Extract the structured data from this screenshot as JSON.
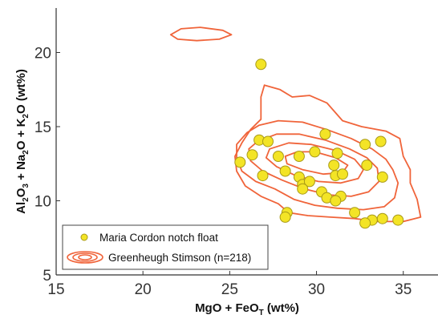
{
  "chart_data": {
    "type": "scatter",
    "title": "",
    "xlabel": "MgO + FeO<sub>T</sub> (wt%)",
    "ylabel": "Al<sub>2</sub>O<sub>3</sub> + Na<sub>2</sub>O + K<sub>2</sub>O (wt%)",
    "xlabel_parts": [
      "MgO + FeO",
      "T",
      " (wt%)"
    ],
    "ylabel_parts": [
      "Al",
      "2",
      "O",
      "3",
      " + Na",
      "2",
      "O + K",
      "2",
      "O (wt%)"
    ],
    "xlim": [
      15,
      37
    ],
    "ylim": [
      5,
      23
    ],
    "xticks": [
      15,
      20,
      25,
      30,
      35
    ],
    "yticks": [
      5,
      10,
      15,
      20
    ],
    "grid": false,
    "legend": {
      "placement": "bottom-left",
      "entries": [
        {
          "label": "Maria Cordon notch float",
          "marker": "circle"
        },
        {
          "label": "Greenheugh Stimson (n=218)",
          "marker": "contours"
        }
      ]
    },
    "colors": {
      "points_fill": "#f3e426",
      "points_edge": "#a89a18",
      "contours": "#f0643a",
      "axes": "#333333"
    },
    "series": [
      {
        "name": "Maria Cordon notch float",
        "kind": "points",
        "points": [
          [
            26.8,
            19.2
          ],
          [
            26.7,
            14.1
          ],
          [
            27.2,
            14.0
          ],
          [
            26.3,
            13.1
          ],
          [
            25.6,
            12.6
          ],
          [
            27.8,
            13.0
          ],
          [
            29.0,
            13.0
          ],
          [
            29.9,
            13.3
          ],
          [
            30.5,
            14.5
          ],
          [
            31.2,
            13.2
          ],
          [
            31.0,
            12.4
          ],
          [
            32.8,
            13.8
          ],
          [
            33.7,
            14.0
          ],
          [
            32.9,
            12.4
          ],
          [
            33.8,
            11.6
          ],
          [
            26.9,
            11.7
          ],
          [
            28.2,
            12.0
          ],
          [
            29.0,
            11.6
          ],
          [
            29.2,
            11.1
          ],
          [
            29.6,
            11.3
          ],
          [
            31.1,
            11.7
          ],
          [
            31.5,
            11.8
          ],
          [
            29.2,
            10.8
          ],
          [
            30.3,
            10.6
          ],
          [
            30.6,
            10.2
          ],
          [
            31.4,
            10.3
          ],
          [
            31.1,
            10.0
          ],
          [
            32.2,
            9.2
          ],
          [
            28.3,
            9.2
          ],
          [
            28.2,
            8.9
          ],
          [
            33.2,
            8.7
          ],
          [
            33.8,
            8.8
          ],
          [
            32.8,
            8.5
          ],
          [
            34.7,
            8.7
          ]
        ]
      },
      {
        "name": "Greenheugh Stimson (n=218)",
        "kind": "density-contours",
        "levels": [
          [
            [
              27.0,
              17.8
            ],
            [
              26.8,
              17.0
            ],
            [
              26.8,
              15.5
            ],
            [
              26.2,
              14.8
            ],
            [
              25.7,
              13.9
            ],
            [
              25.3,
              13.0
            ],
            [
              25.4,
              12.0
            ],
            [
              25.9,
              11.0
            ],
            [
              26.8,
              10.3
            ],
            [
              27.8,
              9.8
            ],
            [
              28.4,
              9.2
            ],
            [
              29.5,
              9.0
            ],
            [
              30.8,
              8.9
            ],
            [
              32.2,
              8.8
            ],
            [
              33.5,
              8.6
            ],
            [
              35.0,
              8.6
            ],
            [
              36.0,
              8.9
            ],
            [
              35.8,
              10.1
            ],
            [
              35.4,
              11.2
            ],
            [
              35.4,
              12.1
            ],
            [
              35.0,
              13.0
            ],
            [
              34.8,
              14.2
            ],
            [
              34.0,
              14.7
            ],
            [
              32.6,
              15.0
            ],
            [
              31.5,
              15.4
            ],
            [
              30.6,
              16.6
            ],
            [
              29.6,
              17.1
            ],
            [
              28.6,
              17.0
            ],
            [
              27.9,
              17.5
            ]
          ],
          [
            [
              26.0,
              14.6
            ],
            [
              25.4,
              13.8
            ],
            [
              25.4,
              12.9
            ],
            [
              25.7,
              12.0
            ],
            [
              26.5,
              11.3
            ],
            [
              27.6,
              10.8
            ],
            [
              28.7,
              10.1
            ],
            [
              29.9,
              9.7
            ],
            [
              31.2,
              9.5
            ],
            [
              32.7,
              9.4
            ],
            [
              33.9,
              9.6
            ],
            [
              34.5,
              10.2
            ],
            [
              34.7,
              11.2
            ],
            [
              34.4,
              12.1
            ],
            [
              34.0,
              12.8
            ],
            [
              33.2,
              13.5
            ],
            [
              32.0,
              14.2
            ],
            [
              30.6,
              14.8
            ],
            [
              29.2,
              15.3
            ],
            [
              27.8,
              15.4
            ],
            [
              26.7,
              15.1
            ]
          ],
          [
            [
              26.6,
              14.0
            ],
            [
              26.1,
              13.5
            ],
            [
              26.2,
              12.7
            ],
            [
              26.9,
              12.0
            ],
            [
              28.0,
              11.4
            ],
            [
              29.3,
              10.8
            ],
            [
              30.7,
              10.4
            ],
            [
              32.0,
              10.3
            ],
            [
              33.0,
              10.6
            ],
            [
              33.6,
              11.3
            ],
            [
              33.5,
              12.2
            ],
            [
              32.9,
              12.9
            ],
            [
              31.9,
              13.5
            ],
            [
              30.5,
              14.1
            ],
            [
              29.0,
              14.5
            ],
            [
              27.7,
              14.5
            ]
          ],
          [
            [
              27.3,
              13.5
            ],
            [
              27.1,
              12.9
            ],
            [
              27.7,
              12.3
            ],
            [
              28.8,
              11.7
            ],
            [
              30.1,
              11.3
            ],
            [
              31.4,
              11.2
            ],
            [
              32.4,
              11.5
            ],
            [
              32.7,
              12.1
            ],
            [
              32.2,
              12.8
            ],
            [
              31.1,
              13.4
            ],
            [
              29.7,
              13.8
            ],
            [
              28.4,
              13.9
            ]
          ],
          [
            [
              28.2,
              13.0
            ],
            [
              28.3,
              12.5
            ],
            [
              29.2,
              12.1
            ],
            [
              30.4,
              11.8
            ],
            [
              31.5,
              11.9
            ],
            [
              31.8,
              12.4
            ],
            [
              31.1,
              12.9
            ],
            [
              29.9,
              13.3
            ],
            [
              28.9,
              13.3
            ]
          ],
          [
            [
              21.6,
              21.2
            ],
            [
              22.2,
              21.6
            ],
            [
              23.3,
              21.7
            ],
            [
              24.6,
              21.5
            ],
            [
              25.1,
              21.2
            ],
            [
              24.4,
              20.9
            ],
            [
              23.1,
              20.8
            ],
            [
              22.0,
              20.9
            ]
          ]
        ]
      }
    ]
  }
}
